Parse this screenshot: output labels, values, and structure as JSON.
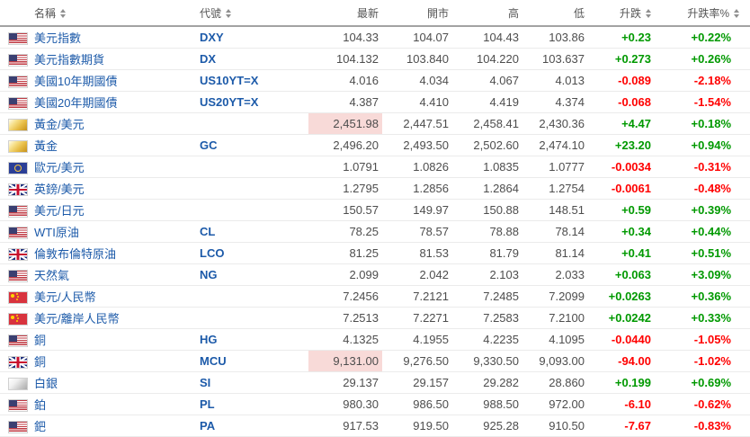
{
  "colors": {
    "link_blue": "#1c5aa9",
    "value_gray": "#4d4d4d",
    "header_gray": "#555555",
    "up_green": "#009900",
    "down_red": "#ff0000",
    "flash_pink": "#f8dad8",
    "row_border": "#ebebeb",
    "header_border": "#a3a3a3"
  },
  "table": {
    "columns": [
      {
        "label": "名稱",
        "sortable": true,
        "align": "left"
      },
      {
        "label": "代號",
        "sortable": true,
        "align": "left"
      },
      {
        "label": "最新",
        "sortable": false,
        "align": "right"
      },
      {
        "label": "開市",
        "sortable": false,
        "align": "right"
      },
      {
        "label": "高",
        "sortable": false,
        "align": "right"
      },
      {
        "label": "低",
        "sortable": false,
        "align": "right"
      },
      {
        "label": "升跌",
        "sortable": true,
        "align": "right"
      },
      {
        "label": "升跌率%",
        "sortable": true,
        "align": "right"
      }
    ],
    "flag_icons": {
      "us": "united-states-flag",
      "uk": "united-kingdom-flag",
      "eu": "european-union-flag",
      "cn": "china-flag",
      "gold": "gold-bar",
      "silver": "silver-bar"
    },
    "rows": [
      {
        "flag": "us",
        "name": "美元指數",
        "code": "DXY",
        "last": "104.33",
        "open": "104.07",
        "high": "104.43",
        "low": "103.86",
        "change": "+0.23",
        "change_pct": "+0.22%",
        "direction": "up",
        "last_flash": false
      },
      {
        "flag": "us",
        "name": "美元指數期貨",
        "code": "DX",
        "last": "104.132",
        "open": "103.840",
        "high": "104.220",
        "low": "103.637",
        "change": "+0.273",
        "change_pct": "+0.26%",
        "direction": "up",
        "last_flash": false
      },
      {
        "flag": "us",
        "name": "美國10年期國債",
        "code": "US10YT=X",
        "last": "4.016",
        "open": "4.034",
        "high": "4.067",
        "low": "4.013",
        "change": "-0.089",
        "change_pct": "-2.18%",
        "direction": "down",
        "last_flash": false
      },
      {
        "flag": "us",
        "name": "美國20年期國債",
        "code": "US20YT=X",
        "last": "4.387",
        "open": "4.410",
        "high": "4.419",
        "low": "4.374",
        "change": "-0.068",
        "change_pct": "-1.54%",
        "direction": "down",
        "last_flash": false
      },
      {
        "flag": "gold",
        "name": "黃金/美元",
        "code": "",
        "last": "2,451.98",
        "open": "2,447.51",
        "high": "2,458.41",
        "low": "2,430.36",
        "change": "+4.47",
        "change_pct": "+0.18%",
        "direction": "up",
        "last_flash": true
      },
      {
        "flag": "gold",
        "name": "黃金",
        "code": "GC",
        "last": "2,496.20",
        "open": "2,493.50",
        "high": "2,502.60",
        "low": "2,474.10",
        "change": "+23.20",
        "change_pct": "+0.94%",
        "direction": "up",
        "last_flash": false
      },
      {
        "flag": "eu",
        "name": "歐元/美元",
        "code": "",
        "last": "1.0791",
        "open": "1.0826",
        "high": "1.0835",
        "low": "1.0777",
        "change": "-0.0034",
        "change_pct": "-0.31%",
        "direction": "down",
        "last_flash": false
      },
      {
        "flag": "uk",
        "name": "英鎊/美元",
        "code": "",
        "last": "1.2795",
        "open": "1.2856",
        "high": "1.2864",
        "low": "1.2754",
        "change": "-0.0061",
        "change_pct": "-0.48%",
        "direction": "down",
        "last_flash": false
      },
      {
        "flag": "us",
        "name": "美元/日元",
        "code": "",
        "last": "150.57",
        "open": "149.97",
        "high": "150.88",
        "low": "148.51",
        "change": "+0.59",
        "change_pct": "+0.39%",
        "direction": "up",
        "last_flash": false
      },
      {
        "flag": "us",
        "name": "WTI原油",
        "code": "CL",
        "last": "78.25",
        "open": "78.57",
        "high": "78.88",
        "low": "78.14",
        "change": "+0.34",
        "change_pct": "+0.44%",
        "direction": "up",
        "last_flash": false
      },
      {
        "flag": "uk",
        "name": "倫敦布倫特原油",
        "code": "LCO",
        "last": "81.25",
        "open": "81.53",
        "high": "81.79",
        "low": "81.14",
        "change": "+0.41",
        "change_pct": "+0.51%",
        "direction": "up",
        "last_flash": false
      },
      {
        "flag": "us",
        "name": "天然氣",
        "code": "NG",
        "last": "2.099",
        "open": "2.042",
        "high": "2.103",
        "low": "2.033",
        "change": "+0.063",
        "change_pct": "+3.09%",
        "direction": "up",
        "last_flash": false
      },
      {
        "flag": "cn",
        "name": "美元/人民幣",
        "code": "",
        "last": "7.2456",
        "open": "7.2121",
        "high": "7.2485",
        "low": "7.2099",
        "change": "+0.0263",
        "change_pct": "+0.36%",
        "direction": "up",
        "last_flash": false
      },
      {
        "flag": "cn",
        "name": "美元/離岸人民幣",
        "code": "",
        "last": "7.2513",
        "open": "7.2271",
        "high": "7.2583",
        "low": "7.2100",
        "change": "+0.0242",
        "change_pct": "+0.33%",
        "direction": "up",
        "last_flash": false
      },
      {
        "flag": "us",
        "name": "銅",
        "code": "HG",
        "last": "4.1325",
        "open": "4.1955",
        "high": "4.2235",
        "low": "4.1095",
        "change": "-0.0440",
        "change_pct": "-1.05%",
        "direction": "down",
        "last_flash": false
      },
      {
        "flag": "uk",
        "name": "銅",
        "code": "MCU",
        "last": "9,131.00",
        "open": "9,276.50",
        "high": "9,330.50",
        "low": "9,093.00",
        "change": "-94.00",
        "change_pct": "-1.02%",
        "direction": "down",
        "last_flash": true
      },
      {
        "flag": "silver",
        "name": "白銀",
        "code": "SI",
        "last": "29.137",
        "open": "29.157",
        "high": "29.282",
        "low": "28.860",
        "change": "+0.199",
        "change_pct": "+0.69%",
        "direction": "up",
        "last_flash": false
      },
      {
        "flag": "us",
        "name": "鉑",
        "code": "PL",
        "last": "980.30",
        "open": "986.50",
        "high": "988.50",
        "low": "972.00",
        "change": "-6.10",
        "change_pct": "-0.62%",
        "direction": "down",
        "last_flash": false
      },
      {
        "flag": "us",
        "name": "鈀",
        "code": "PA",
        "last": "917.53",
        "open": "919.50",
        "high": "925.28",
        "low": "910.50",
        "change": "-7.67",
        "change_pct": "-0.83%",
        "direction": "down",
        "last_flash": false
      }
    ]
  }
}
